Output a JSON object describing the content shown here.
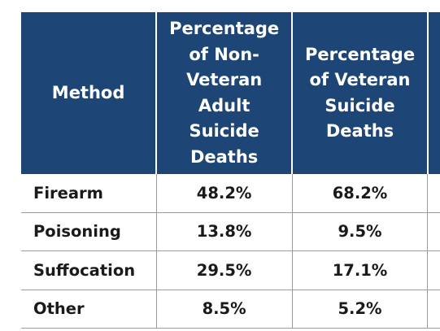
{
  "table": {
    "headers": {
      "method": "Method",
      "non_veteran": [
        "Percentage",
        "of Non-",
        "Veteran",
        "Adult",
        "Suicide",
        "Deaths"
      ],
      "veteran": [
        "Percentage",
        "of Veteran",
        "Suicide",
        "Deaths"
      ]
    },
    "rows": [
      {
        "method": "Firearm",
        "non_veteran": "48.2%",
        "veteran": "68.2%"
      },
      {
        "method": "Poisoning",
        "non_veteran": "13.8%",
        "veteran": "9.5%"
      },
      {
        "method": "Suffocation",
        "non_veteran": "29.5%",
        "veteran": "17.1%"
      },
      {
        "method": "Other",
        "non_veteran": "8.5%",
        "veteran": "5.2%"
      }
    ],
    "colors": {
      "header_bg": "#1d4576",
      "header_text": "#ffffff",
      "body_text": "#1a1a1a",
      "grid": "#9a9a9a"
    }
  }
}
